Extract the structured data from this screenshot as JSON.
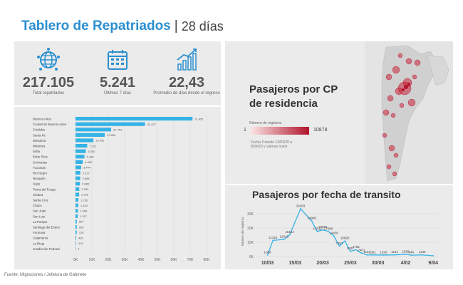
{
  "header": {
    "title": "Tablero de Repatriados",
    "separator": "|",
    "subtitle": "28 días"
  },
  "kpis": [
    {
      "icon": "globe-people-icon",
      "value": "217.105",
      "label": "Total repatriados"
    },
    {
      "icon": "calendar-icon",
      "value": "5.241",
      "label": "Últimos 7 días"
    },
    {
      "icon": "growth-chart-icon",
      "value": "22,43",
      "label": "Promedio de días desde el regreso"
    }
  ],
  "chart_data": [
    {
      "type": "bar",
      "orientation": "horizontal",
      "categories": [
        "Buenos Aires",
        "Ciudad de Buenos Aires",
        "Córdoba",
        "Santa Fe",
        "Mendoza",
        "Misiones",
        "Salta",
        "Entre Ríos",
        "Corrientes",
        "Tucumán",
        "Río Negro",
        "Neuquén",
        "Jujuy",
        "Tierra del Fuego",
        "Chubut",
        "Santa Cruz",
        "Chaco",
        "San Juan",
        "San Luis",
        "La Pampa",
        "Santiago del Estero",
        "Formosa",
        "Catamarca",
        "La Rioja",
        "Jusidicción Federal"
      ],
      "values": [
        71451,
        42427,
        21751,
        17833,
        10931,
        7121,
        6282,
        5440,
        4402,
        3444,
        2917,
        2858,
        2685,
        2283,
        2228,
        1736,
        1643,
        1459,
        1317,
        807,
        809,
        725,
        426,
        313,
        1
      ],
      "value_labels": [
        "71.451",
        "42.427",
        "21.751",
        "17.833",
        "10.931",
        "7.121",
        "6.282",
        "5.440",
        "4.402",
        "3.444",
        "2.917",
        "2.858",
        "2.685",
        "2.283",
        "2.228",
        "1.736",
        "1.643",
        "1.459",
        "1.317",
        "807",
        "809",
        "725",
        "426",
        "313",
        "1"
      ],
      "xticks": [
        "0K",
        "10K",
        "20K",
        "30K",
        "40K",
        "50K",
        "60K",
        "70K",
        "80K"
      ],
      "xlim": [
        0,
        80000
      ],
      "color": "#35b3e6"
    },
    {
      "type": "line",
      "title": "Pasajeros por fecha de transito",
      "ylabel": "Número de registros",
      "xticks": [
        "10/03",
        "15/03",
        "20/03",
        "25/03",
        "30/03",
        "4/02",
        "9/04"
      ],
      "yticks": [
        "0K",
        "10K",
        "20K",
        "30K"
      ],
      "ylim": [
        0,
        35000
      ],
      "points": [
        {
          "day": 10,
          "value": 1008,
          "label": "1008"
        },
        {
          "day": 11,
          "value": 11324,
          "label": "11324"
        },
        {
          "day": 13,
          "value": 12010,
          "label": "12010"
        },
        {
          "day": 14,
          "value": 15154,
          "label": "15154"
        },
        {
          "day": 16,
          "value": 33483,
          "label": "33483"
        },
        {
          "day": 18,
          "value": 24988,
          "label": "24988"
        },
        {
          "day": 19,
          "value": 17542,
          "label": "17542"
        },
        {
          "day": 20,
          "value": 18695,
          "label": "18695"
        },
        {
          "day": 21,
          "value": 17596,
          "label": "17596"
        },
        {
          "day": 22,
          "value": 14436,
          "label": "14436"
        },
        {
          "day": 23,
          "value": 7357,
          "label": "7357"
        },
        {
          "day": 24,
          "value": 10893,
          "label": "10893"
        },
        {
          "day": 25,
          "value": 3631,
          "label": "3631"
        },
        {
          "day": 26,
          "value": 4735,
          "label": "4735"
        },
        {
          "day": 27,
          "value": 2401,
          "label": "2401"
        },
        {
          "day": 28,
          "value": 1154,
          "label": "1154"
        },
        {
          "day": 29,
          "value": 1091,
          "label": "1091"
        },
        {
          "day": 31,
          "value": 1026,
          "label": "1026"
        },
        {
          "day": 33,
          "value": 1154,
          "label": "1154"
        },
        {
          "day": 35,
          "value": 1599,
          "label": "1599"
        },
        {
          "day": 36,
          "value": 946,
          "label": "946"
        },
        {
          "day": 38,
          "value": 1139,
          "label": "1139"
        },
        {
          "day": 40,
          "value": 500,
          "label": ""
        }
      ],
      "xlim": [
        8,
        41
      ],
      "color": "#35b3e6"
    }
  ],
  "map": {
    "title_line1": "Pasajeros por CP",
    "title_line2": "de residencia",
    "legend_heading": "Número de registros",
    "legend_min": "1",
    "legend_max": "10878",
    "legend_note": "Fecha Tránsito 12/03/20 a 8/04/20 y valores nulos",
    "legend_low_color": "#fbe4e4",
    "legend_high_color": "#b0132a"
  },
  "footer": "Fuente: Migraciones / Jefatura de Gabinete"
}
